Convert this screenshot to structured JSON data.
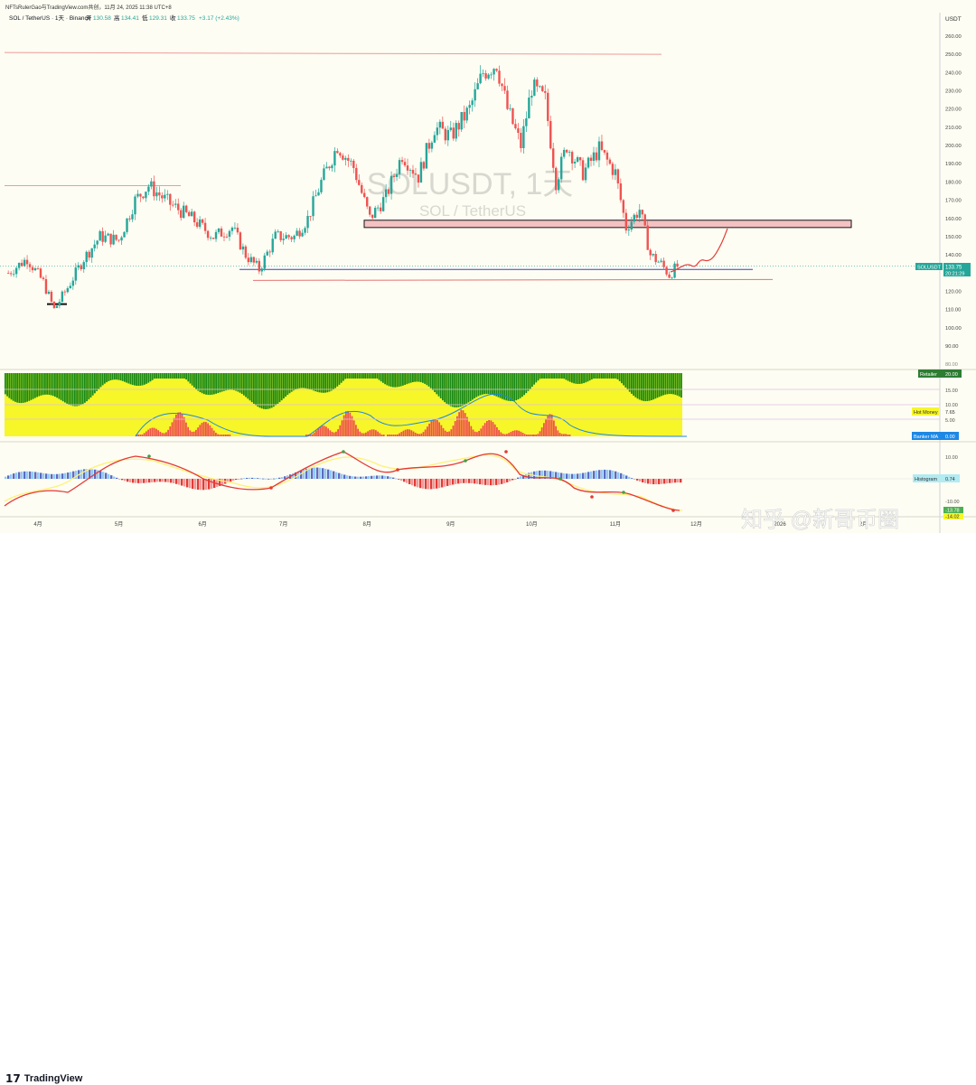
{
  "header": {
    "byline": "NFTsRulerGao与TradingView.com共创，11月 24, 2025 11:38 UTC+8",
    "symbol_line": "SOL / TetherUS · 1天 · Binance",
    "ohlc": [
      {
        "label": "开",
        "value": "130.58"
      },
      {
        "label": "高",
        "value": "134.41"
      },
      {
        "label": "低",
        "value": "129.31"
      },
      {
        "label": "收",
        "value": "133.75"
      }
    ],
    "change": "+3.17 (+2.43%)",
    "currency": "USDT"
  },
  "watermark": {
    "symbol": "SOLUSDT, 1天",
    "name": "SOL / TetherUS"
  },
  "price_label": {
    "symbol": "SOLUSDT",
    "price": "133.75",
    "countdown": "20:21:29"
  },
  "panels": {
    "retailer": {
      "label": "Retailer",
      "value": "20.00"
    },
    "hot_money": {
      "label": "Hot Money",
      "value": "7.65"
    },
    "banker": {
      "label": "Banker MA",
      "value": "0.00"
    },
    "histogram": {
      "label": "Histogram",
      "value": "0.74"
    },
    "macd_a": "-13.78",
    "macd_b": "-14.02"
  },
  "x_months": [
    "4月",
    "5月",
    "6月",
    "7月",
    "8月",
    "9月",
    "10月",
    "11月",
    "12月",
    "2026",
    "2月"
  ],
  "osc_axis": [
    "80.00",
    "15.00",
    "10.00",
    "5.00"
  ],
  "macd_axis": [
    "10.00",
    "-10.00"
  ],
  "footer_brand": "TradingView",
  "footer_mark": "17",
  "site_watermark": "知乎 @新哥币圈",
  "colors": {
    "up": "#26a69a",
    "down": "#ef5350",
    "red_line": "#ef9a9a",
    "blue_line": "#3f3fbf",
    "zone_fill": "#f4c2c2",
    "retail_green": "#1a8a1a",
    "retail_yellow": "#f6f629",
    "hot_red": "#ef5350",
    "banker_blue": "#1e88e5"
  },
  "chart_data": {
    "type": "candlestick",
    "title": "SOLUSDT, 1天",
    "ylabel": "USDT",
    "ylim": [
      85,
      265
    ],
    "y_ticks": [
      90,
      100,
      110,
      120,
      130,
      140,
      150,
      160,
      170,
      180,
      190,
      200,
      210,
      220,
      230,
      240,
      250,
      260
    ],
    "x_ticks": [
      "4月",
      "5月",
      "6月",
      "7月",
      "8月",
      "9月",
      "10月",
      "11月",
      "12月",
      "2026",
      "2月"
    ],
    "approx_series": {
      "dates": [
        "2025-03-21",
        "2025-03-28",
        "2025-04-03",
        "2025-04-07",
        "2025-04-12",
        "2025-04-18",
        "2025-04-24",
        "2025-05-01",
        "2025-05-07",
        "2025-05-12",
        "2025-05-20",
        "2025-05-28",
        "2025-06-05",
        "2025-06-12",
        "2025-06-17",
        "2025-06-22",
        "2025-06-28",
        "2025-07-05",
        "2025-07-10",
        "2025-07-15",
        "2025-07-21",
        "2025-07-27",
        "2025-08-02",
        "2025-08-08",
        "2025-08-14",
        "2025-08-20",
        "2025-08-26",
        "2025-09-01",
        "2025-09-08",
        "2025-09-13",
        "2025-09-18",
        "2025-09-22",
        "2025-09-27",
        "2025-10-01",
        "2025-10-06",
        "2025-10-10",
        "2025-10-14",
        "2025-10-20",
        "2025-10-26",
        "2025-11-01",
        "2025-11-05",
        "2025-11-10",
        "2025-11-14",
        "2025-11-18",
        "2025-11-21",
        "2025-11-24"
      ],
      "close": [
        130,
        138,
        125,
        110,
        122,
        138,
        150,
        148,
        170,
        178,
        168,
        160,
        150,
        155,
        140,
        132,
        150,
        150,
        160,
        180,
        200,
        188,
        160,
        172,
        195,
        183,
        210,
        205,
        220,
        240,
        245,
        220,
        200,
        232,
        225,
        180,
        200,
        185,
        198,
        185,
        155,
        165,
        140,
        135,
        129,
        133.75
      ]
    },
    "levels": [
      {
        "type": "horizontal",
        "value": 250
      },
      {
        "type": "horizontal",
        "value": 178
      },
      {
        "type": "zone",
        "from": 155,
        "to": 159
      },
      {
        "type": "horizontal",
        "value": 132
      },
      {
        "type": "horizontal",
        "value": 126
      }
    ],
    "last_price": 133.75
  }
}
